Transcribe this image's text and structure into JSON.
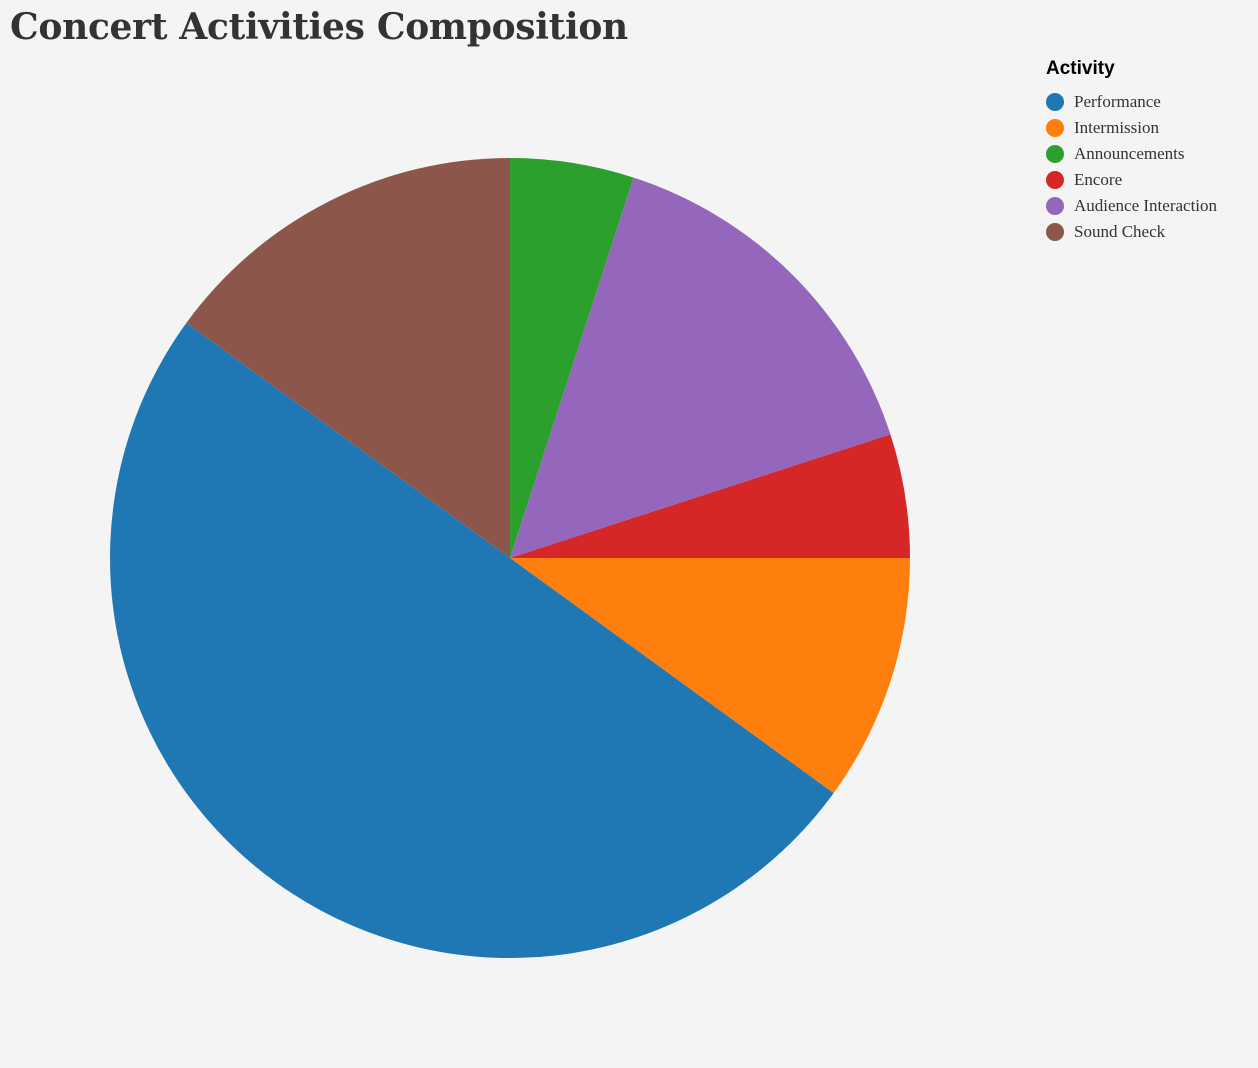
{
  "chart_data": {
    "type": "pie",
    "title": "Concert Activities Composition",
    "legend_title": "Activity",
    "legend_position": "top-right",
    "slices": [
      {
        "label": "Performance",
        "value": 50,
        "color": "#1f77b4"
      },
      {
        "label": "Intermission",
        "value": 10,
        "color": "#ff7f0e"
      },
      {
        "label": "Announcements",
        "value": 5,
        "color": "#2ca02c"
      },
      {
        "label": "Encore",
        "value": 5,
        "color": "#d62728"
      },
      {
        "label": "Audience Interaction",
        "value": 15,
        "color": "#9467bd"
      },
      {
        "label": "Sound Check",
        "value": 15,
        "color": "#8c564b"
      }
    ],
    "draw_order": [
      "Announcements",
      "Audience Interaction",
      "Encore",
      "Intermission",
      "Performance",
      "Sound Check"
    ]
  }
}
